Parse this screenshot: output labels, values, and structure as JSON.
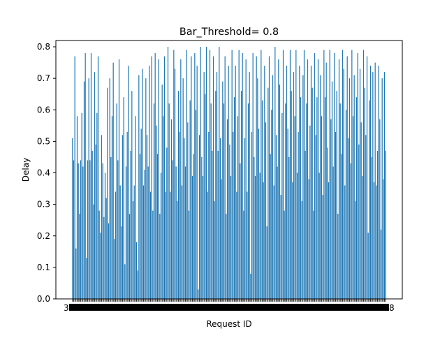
{
  "chart_data": {
    "type": "bar",
    "title": "Bar_Threshold= 0.8",
    "xlabel": "Request ID",
    "ylabel": "Delay",
    "ylim": [
      0.0,
      0.82
    ],
    "yticks": [
      "0.0",
      "0.1",
      "0.2",
      "0.3",
      "0.4",
      "0.5",
      "0.6",
      "0.7",
      "0.8"
    ],
    "grid": false,
    "legend": "none",
    "bar_color": "#1f77b4",
    "x_tick_text_left": "3",
    "x_tick_text_right": "8",
    "values": [
      0.51,
      0.44,
      0.77,
      0.16,
      0.58,
      0.43,
      0.27,
      0.44,
      0.59,
      0.42,
      0.69,
      0.78,
      0.13,
      0.44,
      0.7,
      0.44,
      0.78,
      0.47,
      0.3,
      0.72,
      0.49,
      0.59,
      0.77,
      0.28,
      0.21,
      0.52,
      0.43,
      0.26,
      0.4,
      0.32,
      0.67,
      0.24,
      0.7,
      0.45,
      0.58,
      0.75,
      0.19,
      0.34,
      0.62,
      0.44,
      0.76,
      0.36,
      0.23,
      0.52,
      0.64,
      0.11,
      0.42,
      0.53,
      0.74,
      0.27,
      0.47,
      0.66,
      0.31,
      0.36,
      0.58,
      0.18,
      0.09,
      0.71,
      0.46,
      0.54,
      0.73,
      0.36,
      0.41,
      0.7,
      0.52,
      0.42,
      0.74,
      0.34,
      0.77,
      0.28,
      0.62,
      0.78,
      0.55,
      0.46,
      0.76,
      0.27,
      0.4,
      0.68,
      0.58,
      0.77,
      0.34,
      0.48,
      0.8,
      0.62,
      0.34,
      0.57,
      0.44,
      0.79,
      0.73,
      0.42,
      0.31,
      0.66,
      0.53,
      0.76,
      0.36,
      0.7,
      0.51,
      0.42,
      0.79,
      0.56,
      0.28,
      0.63,
      0.77,
      0.39,
      0.46,
      0.78,
      0.6,
      0.74,
      0.03,
      0.52,
      0.8,
      0.45,
      0.39,
      0.72,
      0.65,
      0.8,
      0.34,
      0.53,
      0.79,
      0.62,
      0.47,
      0.77,
      0.31,
      0.66,
      0.72,
      0.47,
      0.8,
      0.51,
      0.38,
      0.69,
      0.62,
      0.77,
      0.27,
      0.57,
      0.74,
      0.49,
      0.39,
      0.79,
      0.53,
      0.64,
      0.74,
      0.34,
      0.58,
      0.79,
      0.43,
      0.66,
      0.78,
      0.28,
      0.51,
      0.76,
      0.34,
      0.62,
      0.72,
      0.08,
      0.53,
      0.78,
      0.45,
      0.39,
      0.77,
      0.7,
      0.54,
      0.4,
      0.79,
      0.63,
      0.37,
      0.74,
      0.56,
      0.23,
      0.67,
      0.77,
      0.46,
      0.6,
      0.71,
      0.36,
      0.8,
      0.52,
      0.42,
      0.76,
      0.68,
      0.33,
      0.59,
      0.79,
      0.28,
      0.62,
      0.74,
      0.54,
      0.45,
      0.79,
      0.66,
      0.37,
      0.72,
      0.58,
      0.79,
      0.4,
      0.53,
      0.74,
      0.64,
      0.31,
      0.71,
      0.79,
      0.47,
      0.62,
      0.76,
      0.38,
      0.55,
      0.74,
      0.67,
      0.28,
      0.78,
      0.52,
      0.64,
      0.76,
      0.4,
      0.71,
      0.58,
      0.33,
      0.79,
      0.64,
      0.75,
      0.48,
      0.37,
      0.79,
      0.57,
      0.69,
      0.42,
      0.78,
      0.53,
      0.66,
      0.27,
      0.76,
      0.62,
      0.46,
      0.79,
      0.73,
      0.36,
      0.6,
      0.77,
      0.51,
      0.7,
      0.43,
      0.79,
      0.58,
      0.71,
      0.31,
      0.64,
      0.78,
      0.49,
      0.73,
      0.56,
      0.39,
      0.79,
      0.67,
      0.52,
      0.77,
      0.21,
      0.63,
      0.74,
      0.45,
      0.72,
      0.37,
      0.75,
      0.36,
      0.47,
      0.74,
      0.57,
      0.22,
      0.7,
      0.38,
      0.72,
      0.47
    ]
  }
}
